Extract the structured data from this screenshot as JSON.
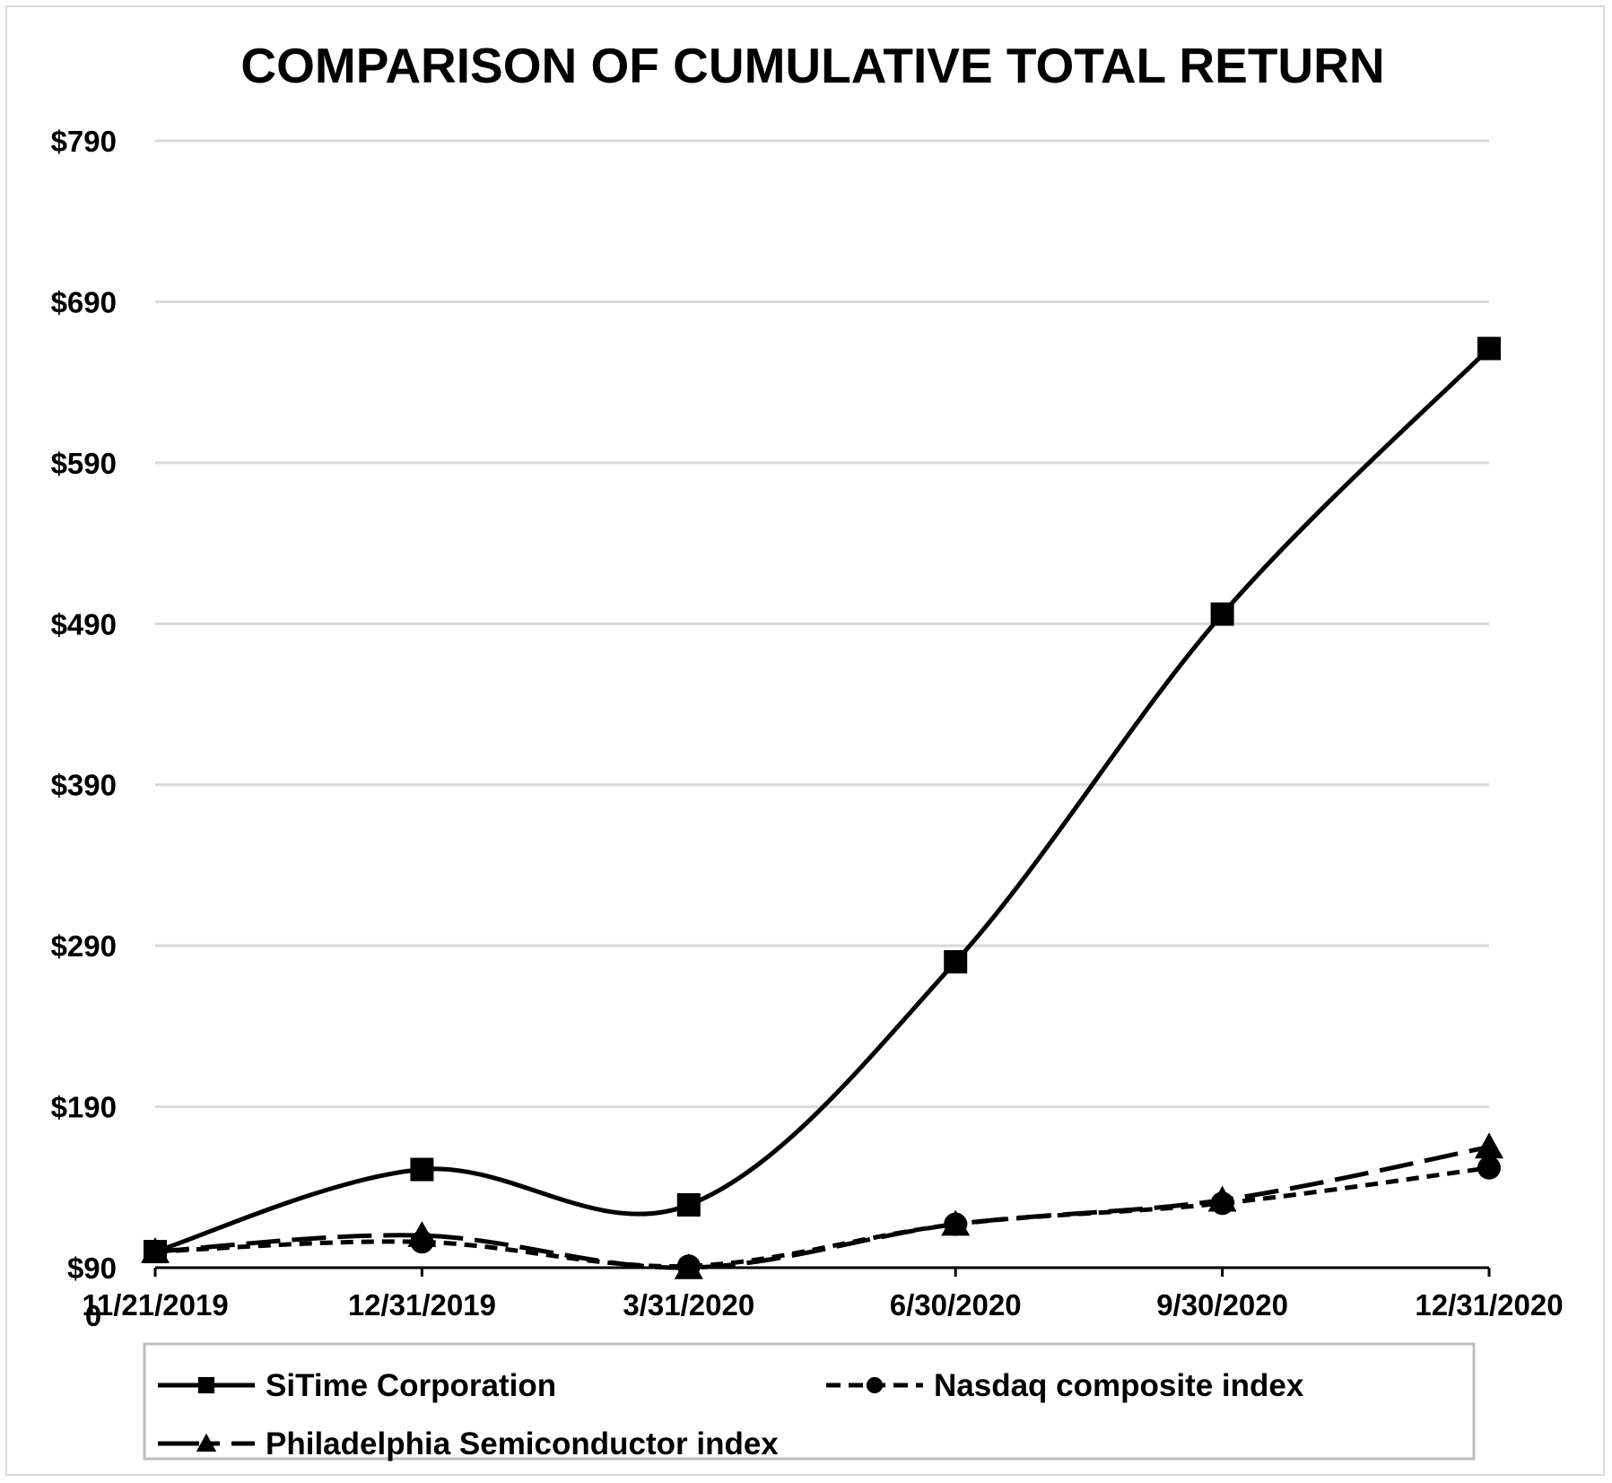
{
  "chart_data": {
    "type": "line",
    "title": "COMPARISON OF CUMULATIVE TOTAL RETURN",
    "xlabel": "",
    "ylabel": "",
    "categories": [
      "11/21/2019",
      "12/31/2019",
      "3/31/2020",
      "6/30/2020",
      "9/30/2020",
      "12/31/2020"
    ],
    "ylim": [
      90,
      790
    ],
    "yticks": [
      "$90",
      "$190",
      "$290",
      "$390",
      "$490",
      "$590",
      "$690",
      "$790"
    ],
    "ytick_values": [
      90,
      190,
      290,
      390,
      490,
      590,
      690,
      790
    ],
    "stray_label": "0",
    "grid": true,
    "legend_position": "bottom",
    "series": [
      {
        "name": "SiTime Corporation",
        "values": [
          100,
          151,
          129,
          280,
          496,
          661
        ],
        "style": "solid",
        "marker": "square",
        "color": "#000000"
      },
      {
        "name": "Nasdaq composite index",
        "values": [
          100,
          106,
          91,
          117,
          130,
          152
        ],
        "style": "short-dash",
        "marker": "circle",
        "color": "#000000"
      },
      {
        "name": "Philadelphia Semiconductor index",
        "values": [
          100,
          110,
          90,
          117,
          132,
          165
        ],
        "style": "long-dash",
        "marker": "triangle",
        "color": "#000000"
      }
    ]
  }
}
